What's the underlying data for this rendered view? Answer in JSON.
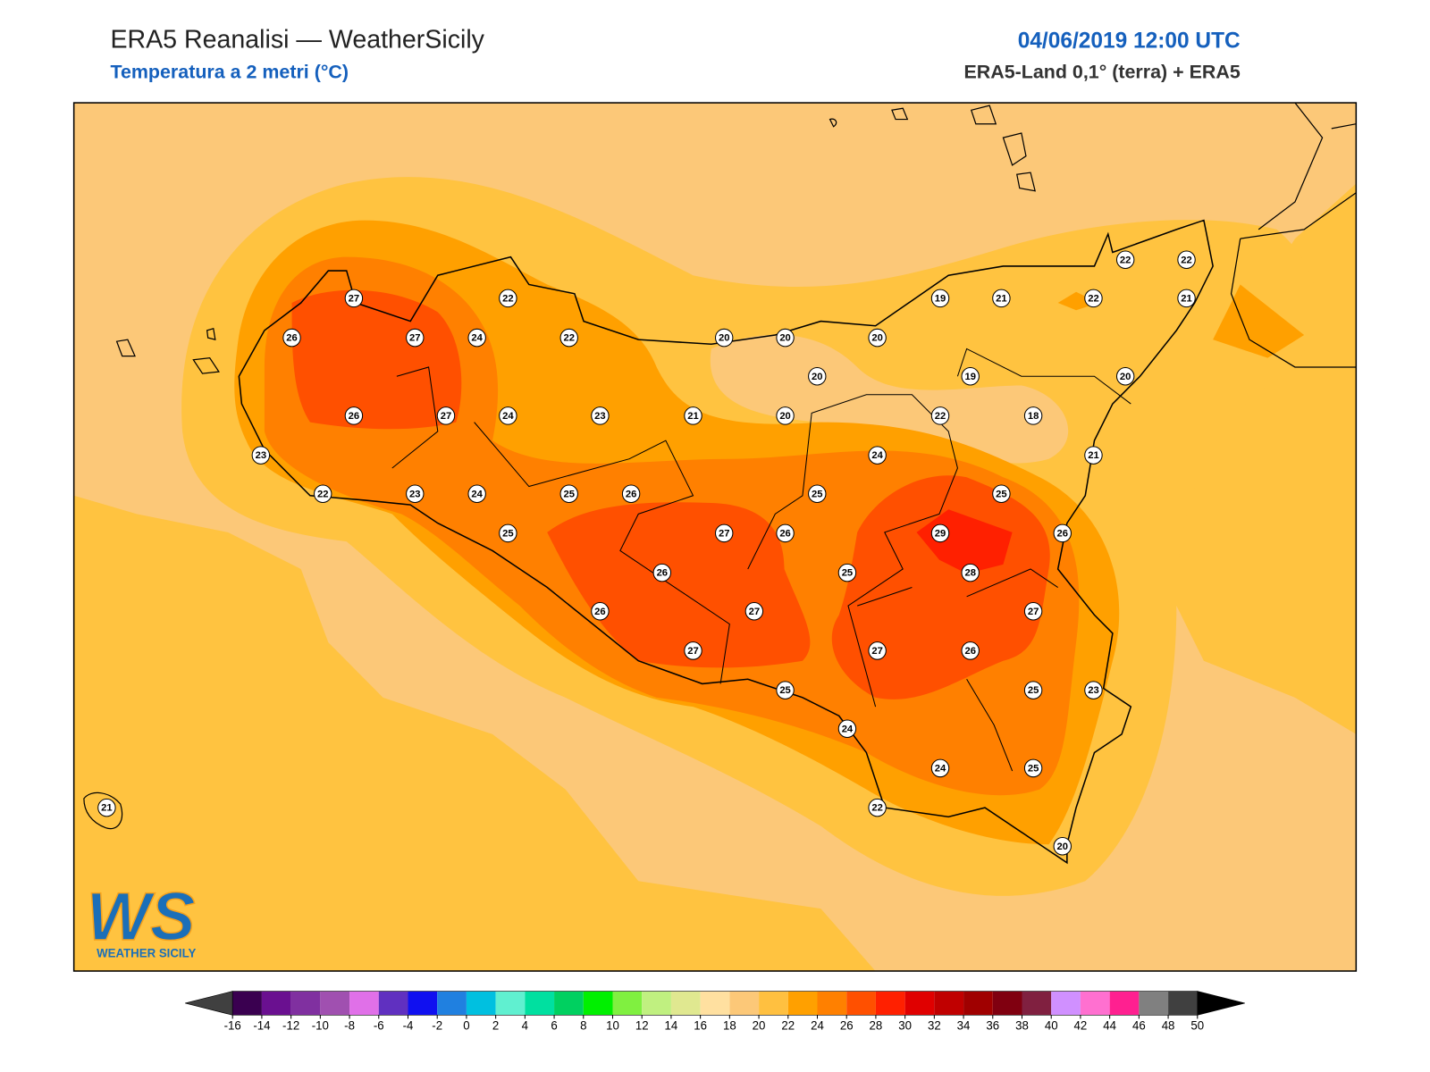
{
  "header": {
    "title": "ERA5 Reanalisi — WeatherSicily",
    "subtitle": "Temperatura a 2 metri (°C)",
    "datetime": "04/06/2019 12:00 UTC",
    "source": "ERA5-Land 0,1° (terra) + ERA5"
  },
  "stations": [
    27,
    22,
    26,
    27,
    24,
    22,
    20,
    20,
    20,
    19,
    21,
    22,
    22,
    22,
    21,
    20,
    19,
    20,
    26,
    27,
    24,
    23,
    21,
    20,
    22,
    18,
    23,
    24,
    21,
    22,
    23,
    24,
    25,
    26,
    25,
    25,
    25,
    27,
    26,
    29,
    26,
    26,
    25,
    28,
    26,
    27,
    27,
    27,
    27,
    26,
    25,
    25,
    23,
    24,
    24,
    25,
    22,
    21,
    20
  ],
  "colorbar": {
    "ticks": [
      -16,
      -14,
      -12,
      -10,
      -8,
      -6,
      -4,
      -2,
      0,
      2,
      4,
      6,
      8,
      10,
      12,
      14,
      16,
      18,
      20,
      22,
      24,
      26,
      28,
      30,
      32,
      34,
      36,
      38,
      40,
      42,
      44,
      46,
      48,
      50
    ],
    "colors": [
      "#3a0050",
      "#6a1090",
      "#8030a0",
      "#a050b0",
      "#e070e8",
      "#6030c0",
      "#1010f0",
      "#2080e0",
      "#00c0e0",
      "#60f0d0",
      "#00e0a0",
      "#00d060",
      "#00f000",
      "#80f040",
      "#c0f080",
      "#e0e890",
      "#ffe0a0",
      "#fcc878",
      "#ffc040",
      "#ffa000",
      "#ff8000",
      "#ff5000",
      "#ff2000",
      "#e00000",
      "#c00000",
      "#a00000",
      "#800010",
      "#802040",
      "#d090ff",
      "#ff70d0",
      "#ff2090",
      "#808080",
      "#404040"
    ],
    "under": "#404040",
    "over": "#000000"
  },
  "logo": {
    "mark": "WS",
    "name": "WEATHER SICILY"
  }
}
